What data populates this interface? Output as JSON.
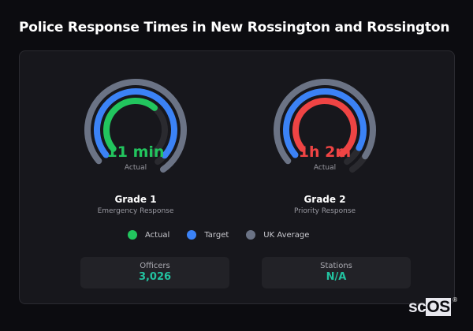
{
  "title": "Police Response Times in New Rossington and Rossington",
  "gauges": [
    {
      "name": "Grade 1",
      "subtitle": "Emergency Response",
      "value": "11 min",
      "value_label": "Actual",
      "value_color": "#22c55e",
      "rings": {
        "uk_average": {
          "color": "#6b7385",
          "fraction": 1.0
        },
        "target": {
          "color": "#3b82f6",
          "fraction": 0.95
        },
        "actual": {
          "color": "#22c55e",
          "fraction": 0.62
        }
      }
    },
    {
      "name": "Grade 2",
      "subtitle": "Priority Response",
      "value": "1h 2m",
      "value_label": "Actual",
      "value_color": "#ef4444",
      "rings": {
        "uk_average": {
          "color": "#6b7385",
          "fraction": 0.92
        },
        "target": {
          "color": "#3b82f6",
          "fraction": 0.9
        },
        "actual": {
          "color": "#ef4444",
          "fraction": 1.0
        }
      }
    }
  ],
  "legend": [
    {
      "label": "Actual",
      "color": "#22c55e"
    },
    {
      "label": "Target",
      "color": "#3b82f6"
    },
    {
      "label": "UK Average",
      "color": "#6b7385"
    }
  ],
  "stats": [
    {
      "label": "Officers",
      "value": "3,026"
    },
    {
      "label": "Stations",
      "value": "N/A"
    }
  ],
  "logo": {
    "text_a": "sc",
    "text_b": "OS",
    "reg": "®"
  },
  "chart_data": {
    "type": "radial-gauge",
    "title": "Police Response Times in New Rossington and Rossington",
    "categories": [
      "Grade 1 (Emergency Response)",
      "Grade 2 (Priority Response)"
    ],
    "series": [
      {
        "name": "Actual",
        "values": [
          "11 min",
          "1h 2m"
        ]
      },
      {
        "name": "Target",
        "values": [
          null,
          null
        ]
      },
      {
        "name": "UK Average",
        "values": [
          null,
          null
        ]
      }
    ]
  }
}
